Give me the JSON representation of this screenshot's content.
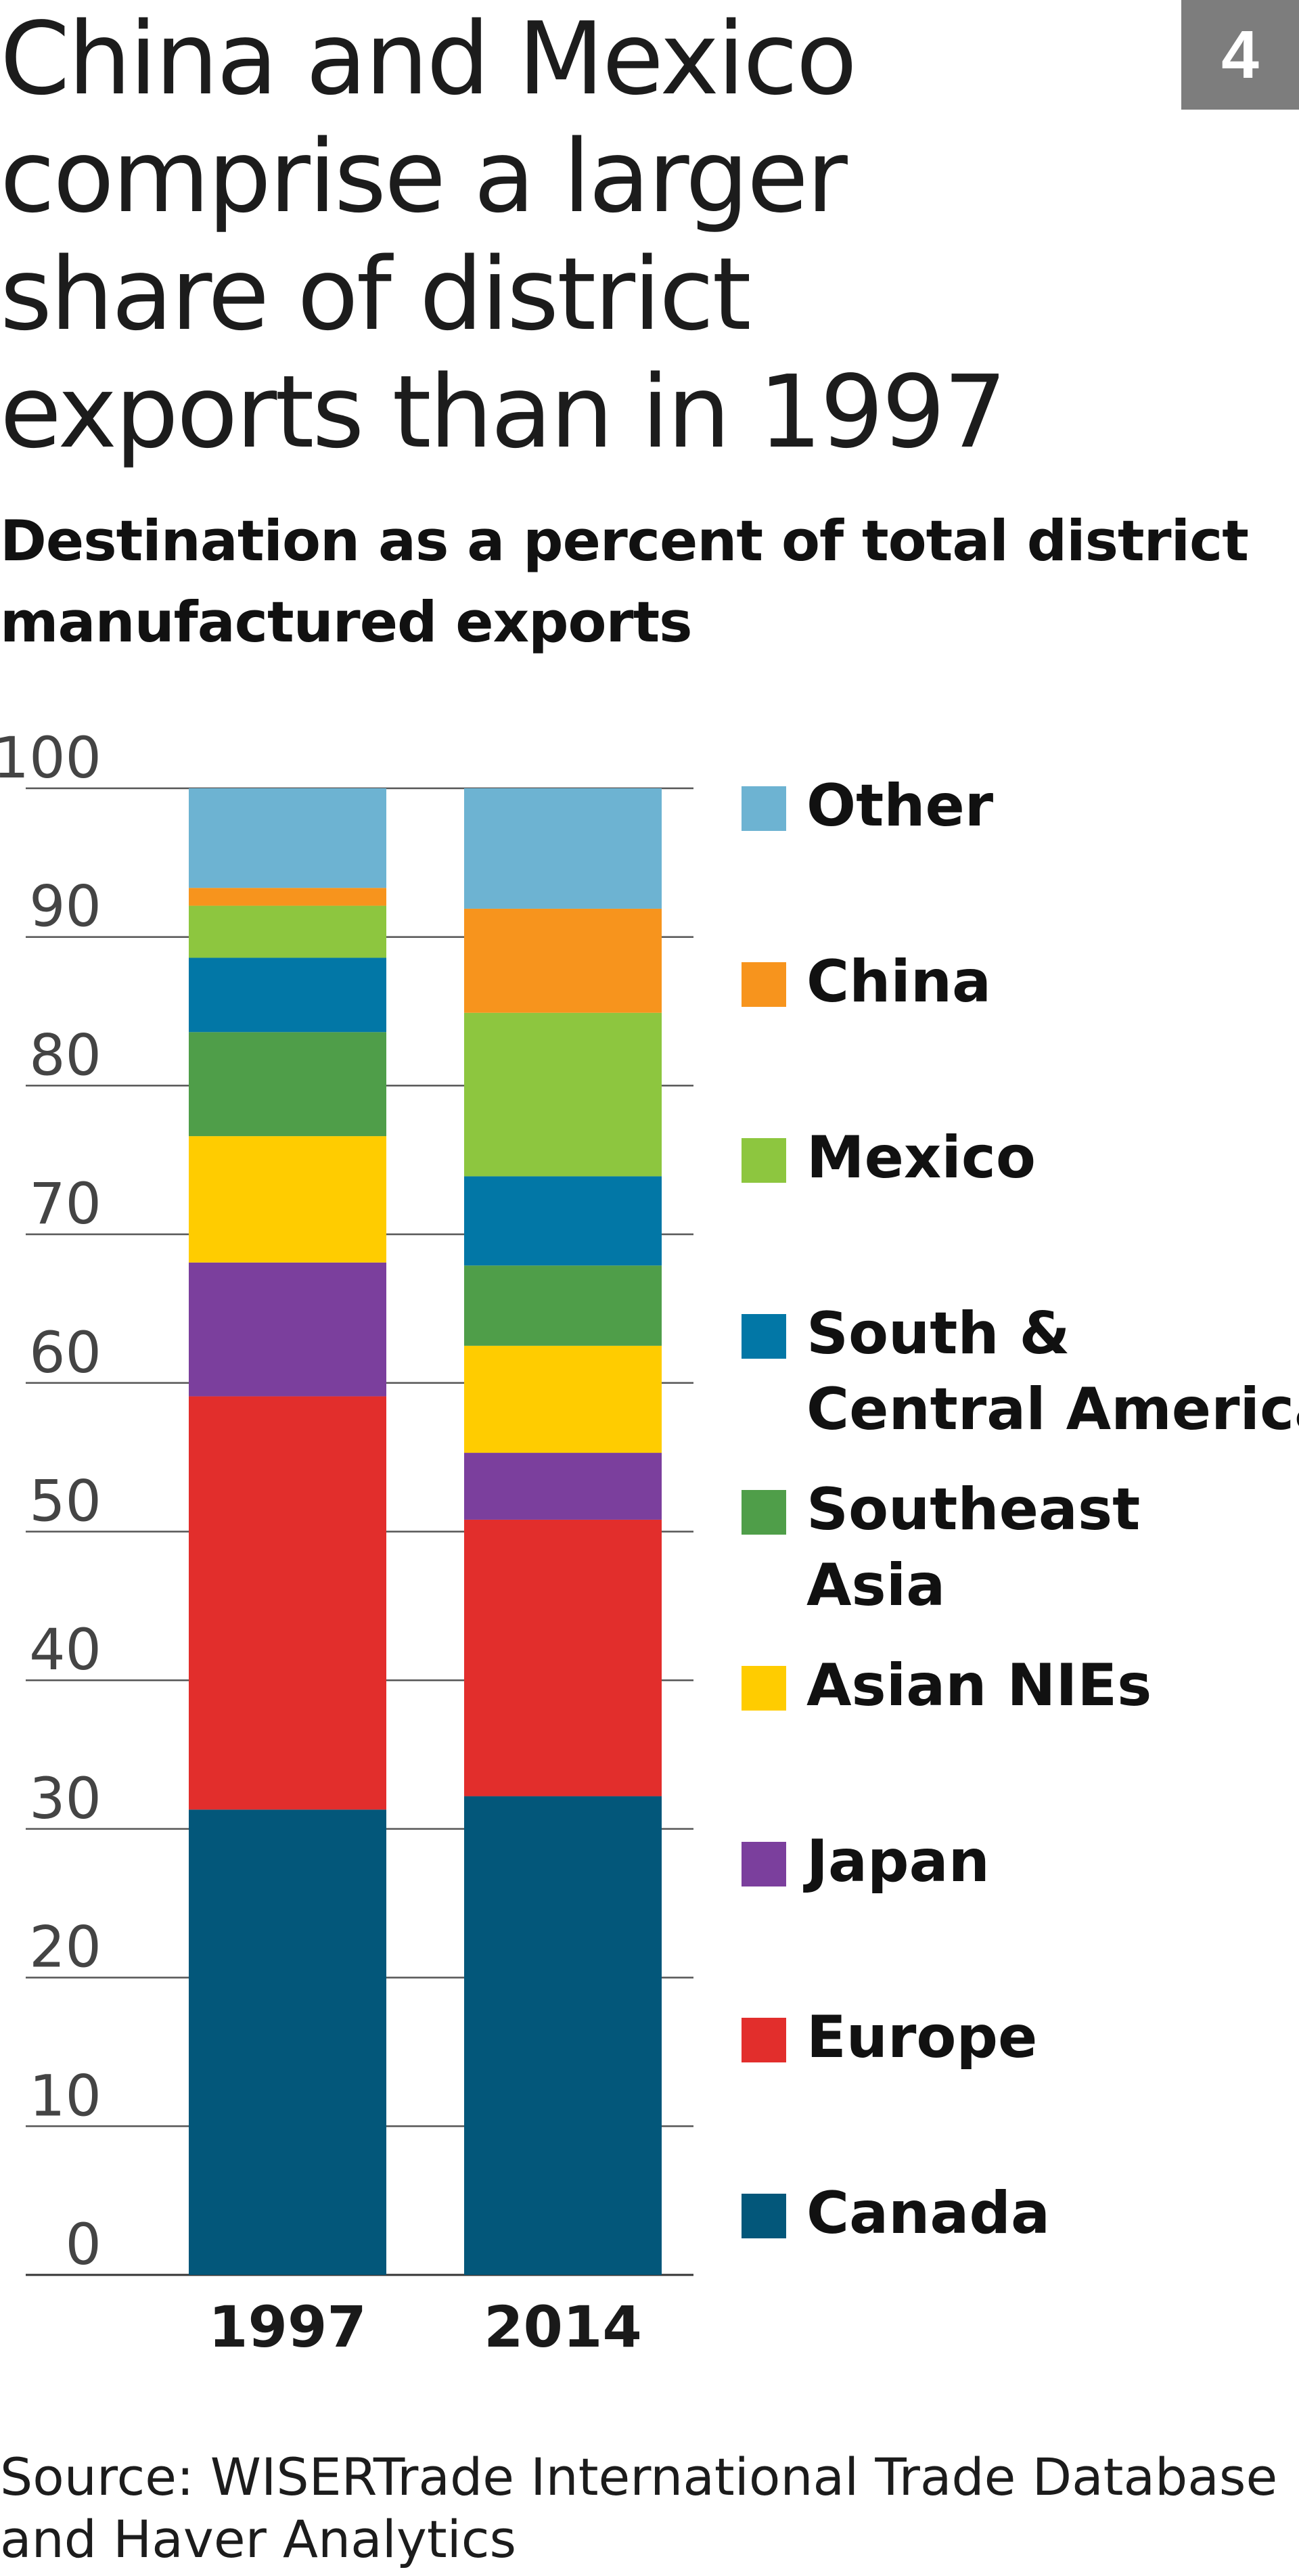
{
  "figure_number": "4",
  "title": "China and Mexico comprise a larger share of district exports than in 1997",
  "subtitle": "Destination as a percent of total district manufactured exports",
  "source": "Source: WISERTrade International Trade Database and Haver Analytics",
  "chart_data": {
    "type": "bar",
    "stacked": true,
    "title": "China and Mexico comprise a larger share of district exports than in 1997",
    "subtitle": "Destination as a percent of total district manufactured exports",
    "xlabel": "",
    "ylabel": "",
    "ylim": [
      0,
      100
    ],
    "yticks": [
      0,
      10,
      20,
      30,
      40,
      50,
      60,
      70,
      80,
      90,
      100
    ],
    "grid": true,
    "legend_position": "right",
    "categories": [
      "1997",
      "2014"
    ],
    "series": [
      {
        "name": "Canada",
        "color": "#03577a",
        "values": [
          31.3,
          32.2
        ]
      },
      {
        "name": "Europe",
        "color": "#e22e2c",
        "values": [
          27.8,
          18.6
        ]
      },
      {
        "name": "Japan",
        "color": "#7b3f9d",
        "values": [
          9.0,
          4.5
        ]
      },
      {
        "name": "Asian NIEs",
        "color": "#ffcc00",
        "values": [
          8.5,
          7.2
        ]
      },
      {
        "name": "Southeast Asia",
        "color": "#4f9e49",
        "values": [
          7.0,
          5.4
        ]
      },
      {
        "name": "South & Central America",
        "color": "#0277a6",
        "values": [
          5.0,
          6.0
        ]
      },
      {
        "name": "Mexico",
        "color": "#8dc63f",
        "values": [
          3.5,
          11.0
        ]
      },
      {
        "name": "China",
        "color": "#f7941d",
        "values": [
          1.2,
          7.0
        ]
      },
      {
        "name": "Other",
        "color": "#6db3d2",
        "values": [
          6.7,
          8.1
        ]
      }
    ]
  }
}
